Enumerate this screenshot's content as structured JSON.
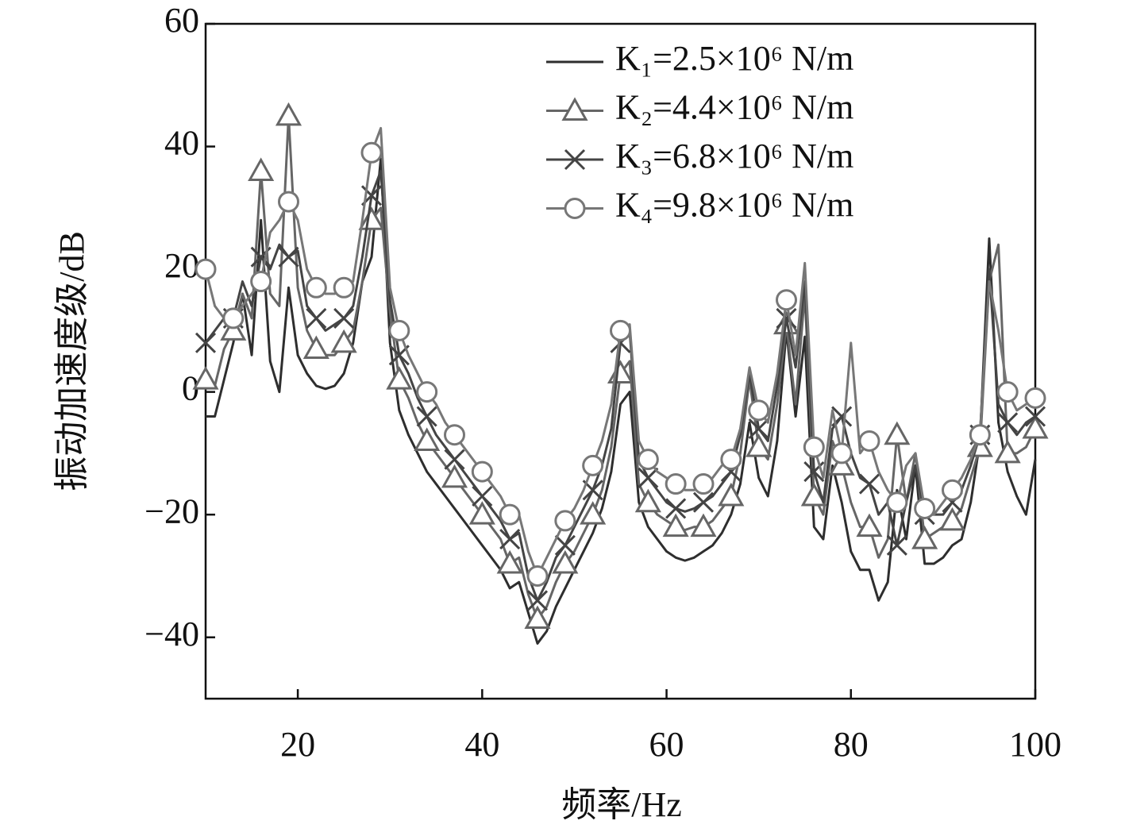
{
  "chart_data": {
    "type": "line",
    "xlabel": "频率/Hz",
    "ylabel": "振动加速度级/dB",
    "x": [
      10,
      11,
      12,
      13,
      14,
      15,
      16,
      17,
      18,
      19,
      20,
      21,
      22,
      23,
      24,
      25,
      26,
      27,
      28,
      29,
      30,
      31,
      32,
      33,
      34,
      35,
      36,
      37,
      38,
      39,
      40,
      41,
      42,
      43,
      44,
      45,
      46,
      47,
      48,
      49,
      50,
      51,
      52,
      53,
      54,
      55,
      56,
      57,
      58,
      59,
      60,
      61,
      62,
      63,
      64,
      65,
      66,
      67,
      68,
      69,
      70,
      71,
      72,
      73,
      74,
      75,
      76,
      77,
      78,
      79,
      80,
      81,
      82,
      83,
      84,
      85,
      86,
      87,
      88,
      89,
      90,
      91,
      92,
      93,
      94,
      95,
      96,
      97,
      98,
      99,
      100
    ],
    "series": [
      {
        "name": "K₁=2.5×10⁶ N/m",
        "color": "#2e2e2e",
        "marker": "none",
        "values": [
          -4,
          -4,
          2,
          8,
          16,
          6,
          28,
          5,
          0,
          17,
          6,
          3,
          1,
          0.5,
          1,
          3,
          8,
          18,
          22,
          38,
          8,
          -3,
          -7,
          -10,
          -13,
          -15,
          -17,
          -19,
          -21,
          -23,
          -25,
          -27,
          -29,
          -32,
          -31,
          -36,
          -41,
          -39,
          -35,
          -32,
          -29,
          -26,
          -23,
          -19,
          -13,
          -2,
          0,
          -18,
          -22,
          -24,
          -26,
          -27,
          -27.5,
          -27,
          -26,
          -25,
          -23,
          -20,
          -15,
          -5,
          -14,
          -17,
          -8,
          10,
          -4,
          9,
          -22,
          -24,
          -12,
          -18,
          -26,
          -29,
          -29,
          -34,
          -31,
          -16,
          -24,
          -12,
          -28,
          -28,
          -27,
          -25,
          -24,
          -18,
          -8,
          25,
          -5,
          -13,
          -17,
          -20,
          -11
        ]
      },
      {
        "name": "K₂=4.4×10⁶ N/m",
        "color": "#666666",
        "marker": "triangle",
        "values": [
          2,
          1,
          7,
          10,
          16,
          12,
          36,
          16,
          14,
          45,
          17,
          10,
          7,
          6,
          6,
          8,
          10,
          18,
          28,
          30,
          13,
          2,
          -1,
          -5,
          -8,
          -10,
          -12,
          -14,
          -16,
          -18,
          -20,
          -22,
          -24,
          -28,
          -27,
          -33,
          -37,
          -35,
          -31,
          -28,
          -26,
          -23,
          -20,
          -16,
          -9,
          3,
          5,
          -15,
          -18,
          -20,
          -21,
          -22,
          -22.5,
          -22,
          -22,
          -21,
          -19,
          -17,
          -10,
          2,
          -9,
          -11,
          -2,
          11,
          -2,
          16,
          -17,
          -20,
          -8,
          -12,
          -18,
          -22,
          -22,
          -27,
          -24,
          -7,
          -18,
          -10,
          -24,
          -23,
          -22,
          -21,
          -19,
          -14,
          -9,
          18,
          24,
          -10,
          -10,
          -9,
          -6
        ]
      },
      {
        "name": "K₃=6.8×10⁶ N/m",
        "color": "#444444",
        "marker": "cross",
        "values": [
          8,
          10,
          12,
          12,
          18,
          14,
          22,
          20,
          24,
          22,
          23,
          14,
          12,
          10,
          11,
          12,
          14,
          22,
          32,
          36,
          15,
          6,
          3,
          -1,
          -4,
          -7,
          -9,
          -11,
          -13,
          -15,
          -17,
          -19,
          -21,
          -24,
          -23,
          -30,
          -34,
          -31,
          -27,
          -25,
          -22,
          -19,
          -16,
          -12,
          -6,
          8,
          10,
          -11,
          -14,
          -16,
          -18,
          -19,
          -19.5,
          -19,
          -18,
          -17,
          -15,
          -13,
          -7,
          3,
          -6,
          -8,
          1,
          12,
          4,
          18,
          -13,
          -18,
          -6,
          -4,
          -10,
          -14,
          -15,
          -20,
          -18,
          -25,
          -18,
          -12,
          -20,
          -20,
          -20,
          -18,
          -16,
          -12,
          -7,
          20,
          -2,
          -5,
          -7,
          -5,
          -4
        ]
      },
      {
        "name": "K₄=9.8×10⁶ N/m",
        "color": "#777777",
        "marker": "circle",
        "values": [
          20,
          14,
          12,
          12,
          14,
          16,
          18,
          26,
          28,
          31,
          28,
          20,
          17,
          16,
          16,
          17,
          18,
          28,
          39,
          43,
          17,
          10,
          6,
          3,
          0,
          -2,
          -5,
          -7,
          -9,
          -11,
          -13,
          -15,
          -17,
          -20,
          -20,
          -26,
          -30,
          -27,
          -24,
          -21,
          -19,
          -16,
          -12,
          -8,
          -2,
          10,
          11,
          -8,
          -11,
          -13,
          -14,
          -15,
          -16,
          -16,
          -15,
          -14,
          -12,
          -11,
          -6,
          4,
          -3,
          -5,
          3,
          15,
          6,
          21,
          -9,
          -14,
          -3,
          -10,
          8,
          -10,
          -8,
          -13,
          -16,
          -18,
          -12,
          -10,
          -19,
          -20,
          -18,
          -16,
          -14,
          -11,
          -7,
          18,
          10,
          0,
          -3,
          -2,
          -1
        ]
      }
    ],
    "xlim": [
      10,
      100
    ],
    "xticks": [
      20,
      40,
      60,
      80,
      100
    ],
    "ylim": [
      -50,
      60
    ],
    "yticks": [
      {
        "value": -40,
        "label": "−40"
      },
      {
        "value": -20,
        "label": "−20"
      },
      0,
      20,
      40,
      60
    ],
    "legend": "upper right"
  }
}
